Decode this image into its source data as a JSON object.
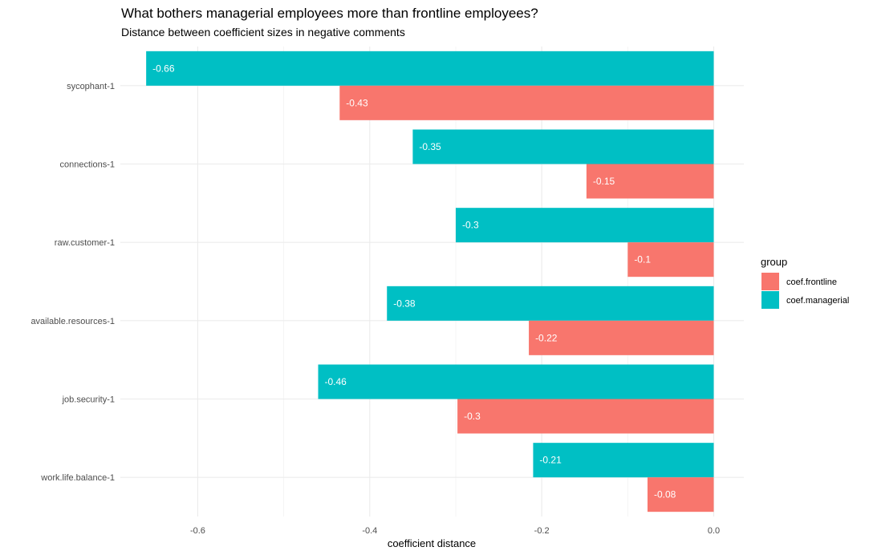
{
  "chart_data": {
    "type": "bar",
    "orientation": "horizontal",
    "title": "What bothers managerial employees more than frontline employees?",
    "subtitle": "Distance between coefficient sizes in negative comments",
    "xlabel": "coefficient distance",
    "ylabel": "",
    "xlim": [
      -0.69,
      0.035
    ],
    "x_ticks": [
      -0.6,
      -0.4,
      -0.2,
      0.0
    ],
    "x_tick_labels": [
      "-0.6",
      "-0.4",
      "-0.2",
      "0.0"
    ],
    "grid": true,
    "categories": [
      "sycophant-1",
      "connections-1",
      "raw.customer-1",
      "available.resources-1",
      "job.security-1",
      "work.life.balance-1"
    ],
    "series": [
      {
        "name": "coef.managerial",
        "color": "#00BFC4",
        "values": [
          -0.66,
          -0.35,
          -0.3,
          -0.38,
          -0.46,
          -0.21
        ],
        "labels": [
          "-0.66",
          "-0.35",
          "-0.3",
          "-0.38",
          "-0.46",
          "-0.21"
        ]
      },
      {
        "name": "coef.frontline",
        "color": "#F8766D",
        "values": [
          -0.435,
          -0.148,
          -0.1,
          -0.215,
          -0.298,
          -0.077
        ],
        "labels": [
          "-0.43",
          "-0.15",
          "-0.1",
          "-0.22",
          "-0.3",
          "-0.08"
        ]
      }
    ],
    "legend": {
      "title": "group",
      "position": "right",
      "entries": [
        {
          "label": "coef.frontline",
          "color": "#F8766D"
        },
        {
          "label": "coef.managerial",
          "color": "#00BFC4"
        }
      ]
    }
  }
}
